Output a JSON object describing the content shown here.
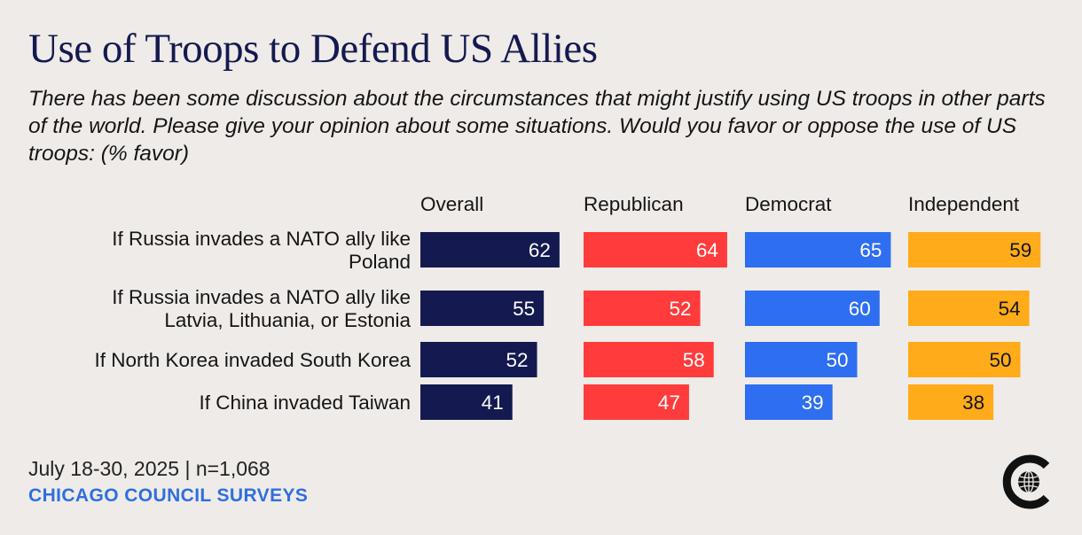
{
  "title": "Use of Troops to Defend US Allies",
  "subtitle": "There has been some discussion about the circumstances that might justify using US troops in other parts of the world. Please give your opinion about some situations. Would you favor or oppose the use of US troops: (% favor)",
  "footer": {
    "date": "July 18-30, 2025 | n=1,068",
    "source": "CHICAGO COUNCIL SURVEYS"
  },
  "logo": {
    "icon": "globe-icon"
  },
  "chart_data": {
    "type": "bar",
    "title": "Use of Troops to Defend US Allies",
    "unit": "% favor",
    "categories": [
      [
        "If Russia invades a NATO ally like",
        "Poland"
      ],
      [
        "If Russia invades a NATO ally like",
        "Latvia, Lithuania, or Estonia"
      ],
      [
        "If North Korea invaded South Korea"
      ],
      [
        "If China invaded Taiwan"
      ]
    ],
    "series": [
      {
        "name": "Overall",
        "color": "#141a4f",
        "values": [
          62,
          55,
          52,
          41
        ]
      },
      {
        "name": "Republican",
        "color": "#ff3b3b",
        "values": [
          64,
          52,
          58,
          47
        ]
      },
      {
        "name": "Democrat",
        "color": "#2e6ef0",
        "values": [
          65,
          60,
          50,
          39
        ]
      },
      {
        "name": "Independent",
        "color": "#ffab1a",
        "values": [
          59,
          54,
          50,
          38
        ]
      }
    ]
  }
}
